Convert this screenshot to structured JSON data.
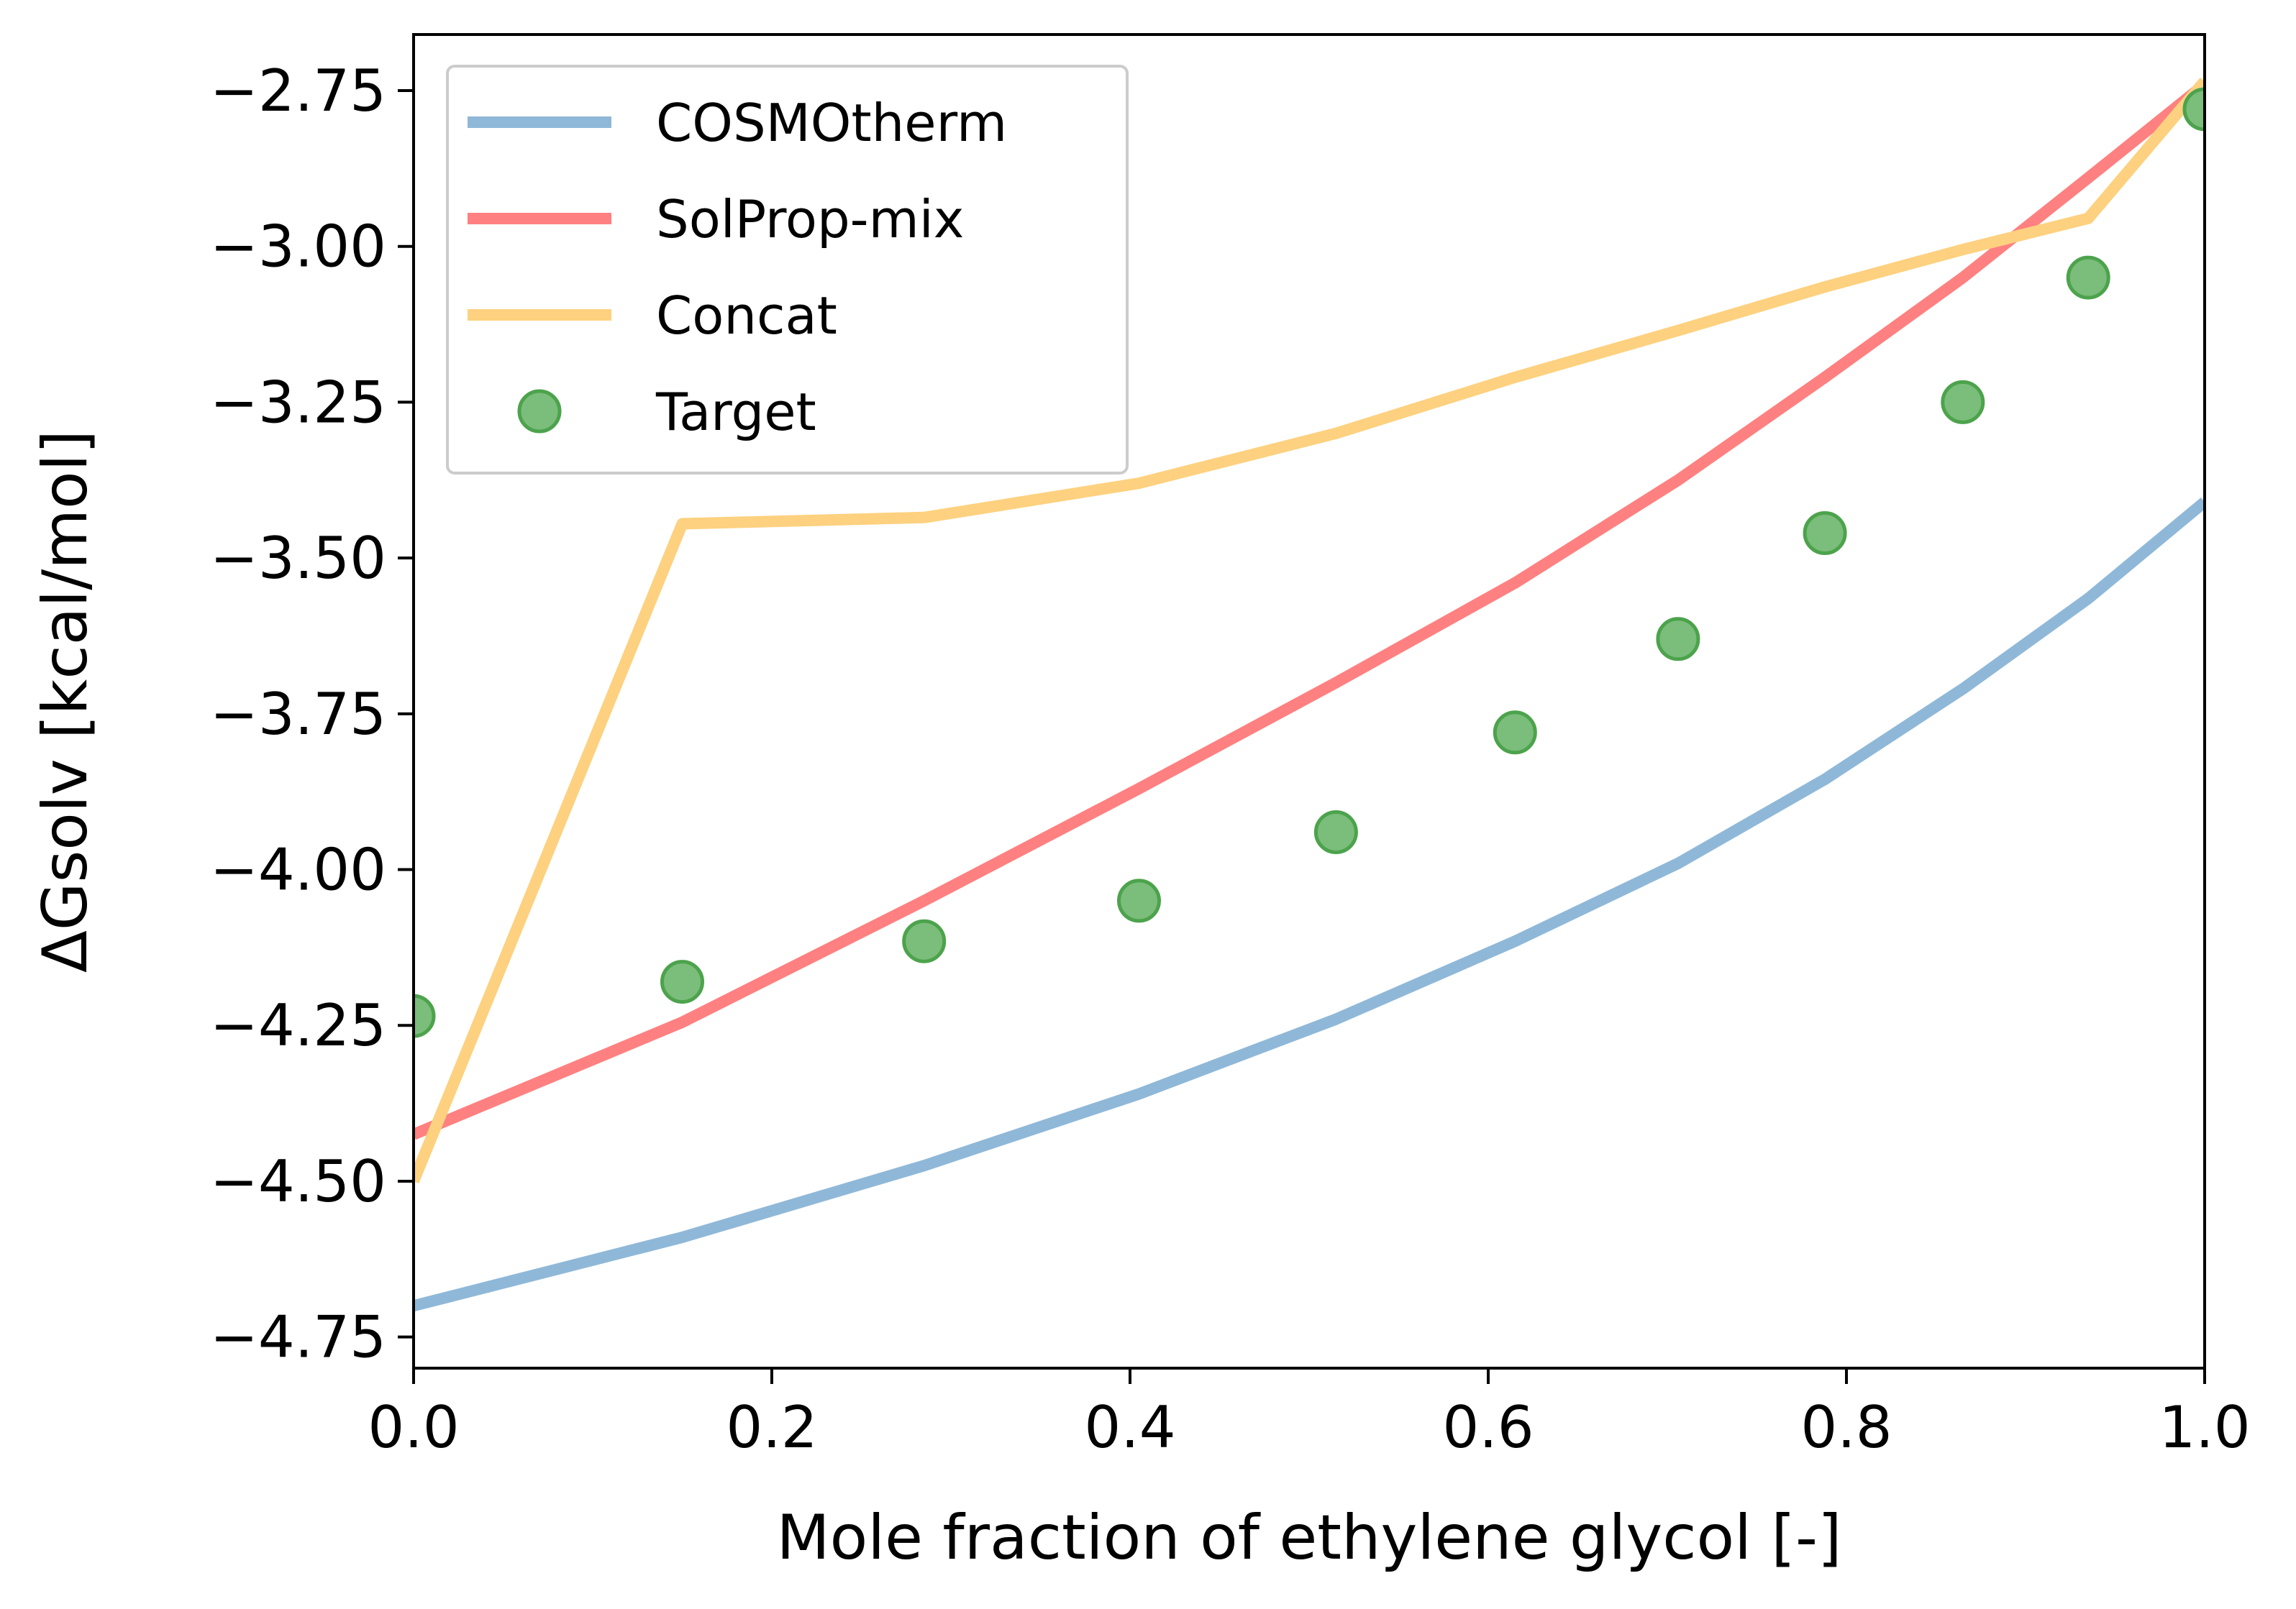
{
  "chart_data": {
    "type": "line",
    "title": "",
    "xlabel": "Mole fraction of ethylene glycol [-]",
    "ylabel": "ΔGsolv [kcal/mol]",
    "xlim": [
      0.0,
      1.0
    ],
    "ylim": [
      -4.8,
      -2.66
    ],
    "xticks": [
      0.0,
      0.2,
      0.4,
      0.6,
      0.8,
      1.0
    ],
    "xtick_labels": [
      "0.0",
      "0.2",
      "0.4",
      "0.6",
      "0.8",
      "1.0"
    ],
    "yticks": [
      -2.75,
      -3.0,
      -3.25,
      -3.5,
      -3.75,
      -4.0,
      -4.25,
      -4.5,
      -4.75
    ],
    "ytick_labels": [
      "−2.75",
      "−3.00",
      "−3.25",
      "−3.50",
      "−3.75",
      "−4.00",
      "−4.25",
      "−4.50",
      "−4.75"
    ],
    "grid": false,
    "legend_position": "top-left",
    "x": [
      0.0,
      0.15,
      0.285,
      0.405,
      0.515,
      0.615,
      0.706,
      0.788,
      0.865,
      0.935,
      1.0
    ],
    "series": [
      {
        "name": "COSMOtherm",
        "kind": "line",
        "color": "#8fb8d8",
        "values": [
          -4.7,
          -4.59,
          -4.475,
          -4.36,
          -4.24,
          -4.115,
          -3.99,
          -3.855,
          -3.71,
          -3.565,
          -3.41
        ]
      },
      {
        "name": "SolProp-mix",
        "kind": "line",
        "color": "#ff8080",
        "values": [
          -4.425,
          -4.245,
          -4.05,
          -3.87,
          -3.7,
          -3.54,
          -3.375,
          -3.21,
          -3.05,
          -2.89,
          -2.74
        ]
      },
      {
        "name": "Concat",
        "kind": "line",
        "color": "#fdd17f",
        "values": [
          -4.5,
          -3.445,
          -3.435,
          -3.38,
          -3.3,
          -3.21,
          -3.135,
          -3.065,
          -3.005,
          -2.955,
          -2.735
        ]
      },
      {
        "name": "Target",
        "kind": "scatter",
        "color": "#7bbd7b",
        "edge_color": "#4ca34c",
        "values": [
          -4.235,
          -4.18,
          -4.115,
          -4.05,
          -3.94,
          -3.78,
          -3.63,
          -3.46,
          -3.25,
          -3.05,
          -2.78
        ]
      }
    ]
  }
}
